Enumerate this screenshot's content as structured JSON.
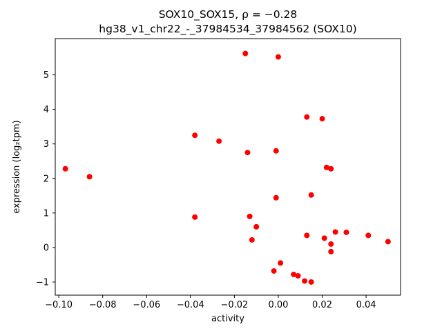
{
  "chart_data": {
    "type": "scatter",
    "title_line1": "SOX10_SOX15, ρ = −0.28",
    "title_line2": "hg38_v1_chr22_-_37984534_37984562 (SOX10)",
    "xlabel": "activity",
    "ylabel": "expression (log₂tpm)",
    "marker_color": "#ff0000",
    "marker_radius": 4,
    "grid": false,
    "legend": "none",
    "xlim": [
      -0.1016,
      0.0557
    ],
    "ylim": [
      -1.38,
      6.05
    ],
    "xticks": {
      "values": [
        -0.1,
        -0.08,
        -0.06,
        -0.04,
        -0.02,
        0.0,
        0.02,
        0.04
      ],
      "labels": [
        "−0.10",
        "−0.08",
        "−0.06",
        "−0.04",
        "−0.02",
        "0.00",
        "0.02",
        "0.04"
      ]
    },
    "yticks": {
      "values": [
        -1,
        0,
        1,
        2,
        3,
        4,
        5
      ],
      "labels": [
        "−1",
        "0",
        "1",
        "2",
        "3",
        "4",
        "5"
      ]
    },
    "points": [
      [
        -0.097,
        2.28
      ],
      [
        -0.086,
        2.05
      ],
      [
        -0.038,
        3.25
      ],
      [
        -0.038,
        0.88
      ],
      [
        -0.027,
        3.08
      ],
      [
        -0.015,
        5.62
      ],
      [
        -0.014,
        2.75
      ],
      [
        -0.013,
        0.9
      ],
      [
        -0.012,
        0.22
      ],
      [
        -0.01,
        0.6
      ],
      [
        0.0,
        5.52
      ],
      [
        -0.001,
        2.8
      ],
      [
        -0.001,
        1.44
      ],
      [
        -0.002,
        -0.68
      ],
      [
        0.001,
        -0.45
      ],
      [
        0.007,
        -0.78
      ],
      [
        0.009,
        -0.82
      ],
      [
        0.012,
        -0.97
      ],
      [
        0.013,
        3.78
      ],
      [
        0.013,
        0.35
      ],
      [
        0.015,
        -1.0
      ],
      [
        0.015,
        1.52
      ],
      [
        0.02,
        3.73
      ],
      [
        0.021,
        0.27
      ],
      [
        0.022,
        2.32
      ],
      [
        0.024,
        2.28
      ],
      [
        0.024,
        0.1
      ],
      [
        0.024,
        -0.12
      ],
      [
        0.026,
        0.45
      ],
      [
        0.031,
        0.44
      ],
      [
        0.041,
        0.35
      ],
      [
        0.05,
        0.17
      ]
    ]
  }
}
